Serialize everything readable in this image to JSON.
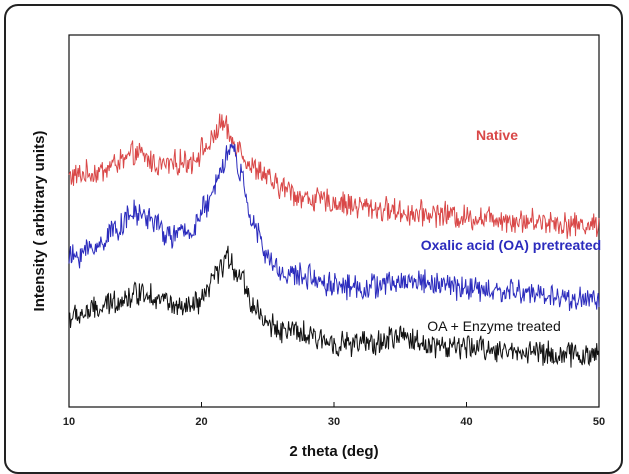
{
  "chart_data": {
    "type": "line",
    "title": "",
    "xlabel": "2 theta (deg)",
    "ylabel": "Intensity ( arbitrary units)",
    "xlim": [
      10,
      50
    ],
    "x_ticks": [
      "10",
      "20",
      "30",
      "40",
      "50"
    ],
    "y_ticks_shown": false,
    "grid": false,
    "legend": "inline labels",
    "series": [
      {
        "name": "Native",
        "color": "#d94848",
        "label_bold": true,
        "points": [
          [
            10,
            62
          ],
          [
            12,
            63
          ],
          [
            14,
            66
          ],
          [
            15,
            68
          ],
          [
            17,
            65
          ],
          [
            19,
            66
          ],
          [
            20.5,
            70
          ],
          [
            21.5,
            76
          ],
          [
            22.5,
            71
          ],
          [
            24,
            64
          ],
          [
            26,
            59
          ],
          [
            28,
            56
          ],
          [
            30,
            55
          ],
          [
            32,
            54
          ],
          [
            34,
            53
          ],
          [
            36,
            52
          ],
          [
            38,
            52
          ],
          [
            40,
            51
          ],
          [
            42,
            51
          ],
          [
            44,
            50
          ],
          [
            46,
            50
          ],
          [
            48,
            49
          ],
          [
            50,
            49
          ]
        ]
      },
      {
        "name": "Oxalic acid (OA) pretreated",
        "color": "#2b2bbd",
        "label_bold": true,
        "points": [
          [
            10,
            40
          ],
          [
            12,
            43
          ],
          [
            13.5,
            48
          ],
          [
            15,
            52
          ],
          [
            16,
            51
          ],
          [
            17.5,
            46
          ],
          [
            19,
            47
          ],
          [
            20.5,
            54
          ],
          [
            21.5,
            65
          ],
          [
            22.3,
            70
          ],
          [
            23,
            62
          ],
          [
            24,
            48
          ],
          [
            25,
            40
          ],
          [
            26,
            36
          ],
          [
            28,
            35
          ],
          [
            30,
            33
          ],
          [
            32,
            32
          ],
          [
            34,
            33
          ],
          [
            36,
            34
          ],
          [
            38,
            33
          ],
          [
            40,
            32
          ],
          [
            42,
            31
          ],
          [
            44,
            31
          ],
          [
            46,
            30
          ],
          [
            48,
            29
          ],
          [
            50,
            29
          ]
        ]
      },
      {
        "name": "OA + Enzyme treated",
        "color": "#111111",
        "label_bold": false,
        "points": [
          [
            10,
            24
          ],
          [
            12,
            26
          ],
          [
            14,
            29
          ],
          [
            15.5,
            31
          ],
          [
            17,
            29
          ],
          [
            18.5,
            26
          ],
          [
            20,
            28
          ],
          [
            21,
            35
          ],
          [
            22,
            40
          ],
          [
            22.8,
            36
          ],
          [
            24,
            27
          ],
          [
            25,
            22
          ],
          [
            27,
            20
          ],
          [
            29,
            18
          ],
          [
            31,
            17
          ],
          [
            33,
            17
          ],
          [
            35,
            19
          ],
          [
            37,
            17
          ],
          [
            39,
            16
          ],
          [
            41,
            16
          ],
          [
            43,
            15
          ],
          [
            45,
            15
          ],
          [
            47,
            14
          ],
          [
            50,
            14
          ]
        ]
      }
    ]
  }
}
